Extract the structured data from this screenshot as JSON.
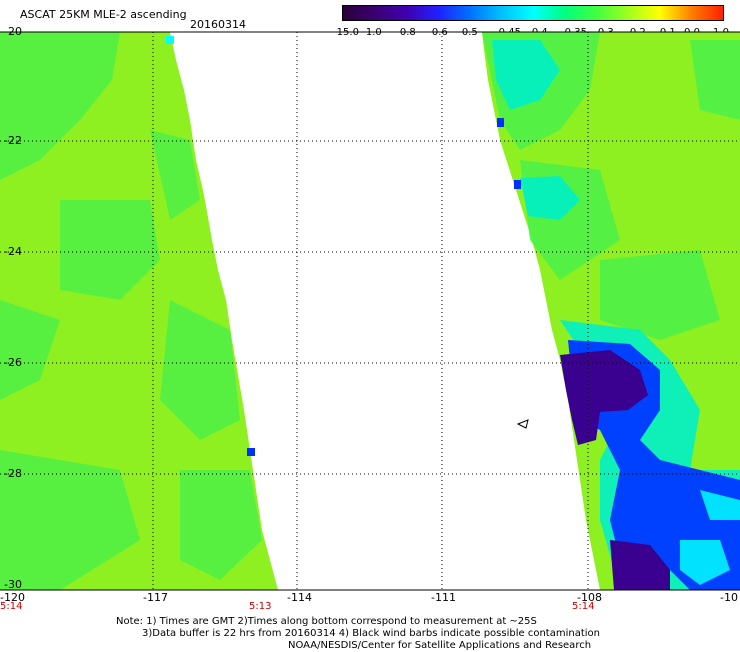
{
  "header": {
    "title": "ASCAT 25KM MLE-2 ascending",
    "date": "20160314"
  },
  "colorbar": {
    "ticks": [
      "-15.0",
      "-1.0",
      "-0.8",
      "-0.6",
      "-0.5",
      "-0.45",
      "-0.4",
      "-0.35",
      "-0.3",
      "-0.2",
      "-0.1",
      "0.0",
      "1.0"
    ],
    "colors": [
      "#2a003a",
      "#3a0070",
      "#4000b0",
      "#2020ff",
      "#0070ff",
      "#00c0ff",
      "#00ffff",
      "#00ff80",
      "#40ff40",
      "#a0ff20",
      "#ffff00",
      "#ff8000",
      "#ff2000"
    ]
  },
  "axes": {
    "x_labels": [
      "-120",
      "-117",
      "-114",
      "-111",
      "-108",
      "-10"
    ],
    "y_labels": [
      "-20",
      "-22",
      "-24",
      "-26",
      "-28",
      "-30"
    ],
    "time_labels": [
      "5:14",
      "5:13",
      "5:14"
    ]
  },
  "notes": {
    "line1": "Note: 1) Times are GMT 2)Times along bottom correspond to measurement at ~25S",
    "line2": "3)Data buffer is 22 hrs from 20160314 4) Black wind barbs indicate possible contamination",
    "line3": "NOAA/NESDIS/Center for Satellite Applications and Research"
  }
}
